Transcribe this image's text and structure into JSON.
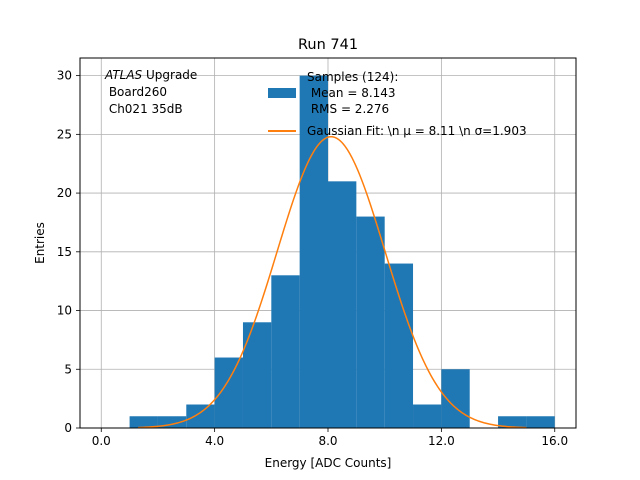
{
  "chart_data": {
    "type": "bar",
    "title": "Run 741",
    "xlabel": "Energy [ADC Counts]",
    "ylabel": "Entries",
    "xlim": [
      -0.75,
      16.75
    ],
    "ylim": [
      0,
      31.5
    ],
    "xticks": [
      0,
      4,
      8,
      12,
      16
    ],
    "xtick_labels": [
      "0.0",
      "4.0",
      "8.0",
      "12.0",
      "16.0"
    ],
    "yticks": [
      0,
      5,
      10,
      15,
      20,
      25,
      30
    ],
    "ytick_labels": [
      "0",
      "5",
      "10",
      "15",
      "20",
      "25",
      "30"
    ],
    "grid": true,
    "bin_edges": [
      1,
      2,
      3,
      4,
      5,
      6,
      7,
      8,
      9,
      10,
      11,
      12,
      13,
      14,
      15,
      16
    ],
    "values": [
      1,
      1,
      2,
      6,
      9,
      13,
      30,
      21,
      18,
      14,
      2,
      5,
      0,
      1,
      1
    ],
    "fit": {
      "type": "line",
      "mu": 8.11,
      "sigma": 1.903,
      "amplitude": 24.8,
      "x_range": [
        1.3,
        15.0
      ]
    },
    "colors": {
      "bars": "#1f77b4",
      "fit": "#ff7f0e",
      "grid": "#b0b0b0"
    },
    "annotation": {
      "lines": [
        "ATLAS Upgrade",
        " Board260",
        " Ch021 35dB"
      ]
    },
    "legend": {
      "placement": "top-right",
      "entries": [
        {
          "kind": "patch",
          "lines": [
            "Samples (124):",
            " Mean = 8.143",
            " RMS = 2.276"
          ]
        },
        {
          "kind": "line",
          "text": "Gaussian Fit: \\n μ = 8.11 \\n σ=1.903"
        }
      ]
    }
  }
}
